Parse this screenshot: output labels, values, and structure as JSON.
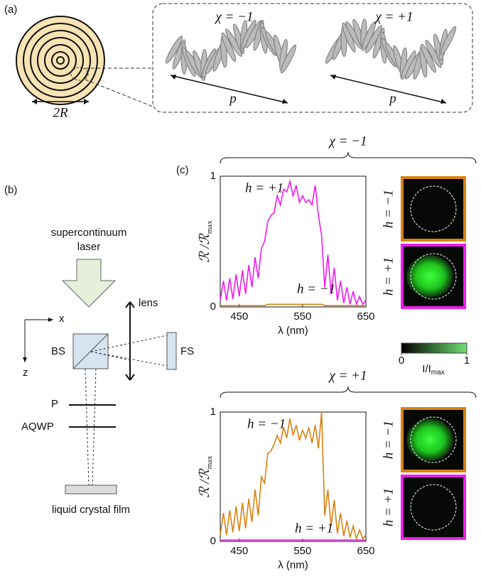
{
  "panel_labels": [
    "(a)",
    "(b)",
    "(c)"
  ],
  "panel_a": {
    "radius_label": "2R",
    "helices": [
      {
        "label": "χ = −1",
        "color": "#1f3fd6",
        "pitch_label": "p"
      },
      {
        "label": "χ = +1",
        "color": "#e0161b",
        "pitch_label": "p"
      }
    ]
  },
  "panel_b": {
    "source": [
      "supercontinuum",
      "laser"
    ],
    "lens": "lens",
    "axis_x": "x",
    "axis_z": "z",
    "beam_splitter": "BS",
    "screen": "FS",
    "polarizer": "P",
    "waveplate": "AQWP",
    "film": "liquid crystal film"
  },
  "colorbar": {
    "ticks": [
      0,
      1
    ],
    "label": "I/I",
    "label_subscript": "max"
  },
  "chart_data": [
    {
      "type": "line",
      "title": "χ = −1",
      "title_color": "#1f3fd6",
      "xlabel": "λ (nm)",
      "ylabel": "ℛ /ℛ",
      "ylabel_subscript": "max",
      "xlim": [
        420,
        650
      ],
      "xticks": [
        450,
        550,
        650
      ],
      "ylim": [
        0,
        1
      ],
      "yticks": [
        0,
        1
      ],
      "x": [
        420,
        425,
        430,
        435,
        440,
        445,
        450,
        455,
        460,
        465,
        470,
        475,
        480,
        485,
        490,
        495,
        500,
        505,
        510,
        515,
        520,
        525,
        530,
        535,
        540,
        545,
        550,
        555,
        560,
        565,
        570,
        575,
        580,
        585,
        590,
        595,
        600,
        605,
        610,
        615,
        620,
        625,
        630,
        635,
        640,
        645,
        650
      ],
      "series": [
        {
          "name": "h = +1",
          "color": "#ee1cee",
          "values": [
            0.05,
            0.2,
            0.05,
            0.22,
            0.06,
            0.25,
            0.08,
            0.28,
            0.1,
            0.32,
            0.15,
            0.38,
            0.22,
            0.45,
            0.5,
            0.65,
            0.7,
            0.72,
            0.85,
            0.78,
            0.9,
            0.88,
            0.96,
            0.85,
            0.93,
            0.8,
            0.85,
            0.8,
            0.82,
            0.78,
            0.93,
            0.7,
            0.55,
            0.15,
            0.4,
            0.1,
            0.3,
            0.05,
            0.2,
            0.03,
            0.15,
            0.02,
            0.12,
            0.02,
            0.08,
            0.02,
            0.05
          ]
        },
        {
          "name": "h = −1",
          "color": "#d9820f",
          "values": [
            0.01,
            0.01,
            0.01,
            0.01,
            0.01,
            0.01,
            0.01,
            0.01,
            0.01,
            0.01,
            0.01,
            0.01,
            0.01,
            0.01,
            0.01,
            0.02,
            0.02,
            0.02,
            0.02,
            0.02,
            0.02,
            0.02,
            0.02,
            0.02,
            0.02,
            0.02,
            0.02,
            0.02,
            0.02,
            0.02,
            0.02,
            0.02,
            0.02,
            0.01,
            0.01,
            0.01,
            0.01,
            0.01,
            0.01,
            0.01,
            0.01,
            0.01,
            0.01,
            0.01,
            0.01,
            0.01,
            0.01
          ]
        }
      ],
      "images": [
        {
          "label": "h = −1",
          "frame_color": "#d9820f",
          "glow": false
        },
        {
          "label": "h = +1",
          "frame_color": "#ee1cee",
          "glow": true
        }
      ]
    },
    {
      "type": "line",
      "title": "χ = +1",
      "title_color": "#e0161b",
      "xlabel": "λ (nm)",
      "ylabel": "ℛ /ℛ",
      "ylabel_subscript": "max",
      "xlim": [
        420,
        650
      ],
      "xticks": [
        450,
        550,
        650
      ],
      "ylim": [
        0,
        1
      ],
      "yticks": [
        0,
        1
      ],
      "x": [
        420,
        425,
        430,
        435,
        440,
        445,
        450,
        455,
        460,
        465,
        470,
        475,
        480,
        485,
        490,
        495,
        500,
        505,
        510,
        515,
        520,
        525,
        530,
        535,
        540,
        545,
        550,
        555,
        560,
        565,
        570,
        575,
        580,
        585,
        590,
        595,
        600,
        605,
        610,
        615,
        620,
        625,
        630,
        635,
        640,
        645,
        650
      ],
      "series": [
        {
          "name": "h = −1",
          "color": "#d9820f",
          "values": [
            0.05,
            0.22,
            0.05,
            0.24,
            0.07,
            0.27,
            0.08,
            0.3,
            0.1,
            0.33,
            0.15,
            0.4,
            0.2,
            0.5,
            0.45,
            0.68,
            0.7,
            0.75,
            0.82,
            0.76,
            0.88,
            0.8,
            0.95,
            0.82,
            0.9,
            0.78,
            0.86,
            0.8,
            0.88,
            0.76,
            0.9,
            0.72,
            1,
            0.2,
            0.4,
            0.12,
            0.32,
            0.06,
            0.22,
            0.04,
            0.16,
            0.03,
            0.12,
            0.02,
            0.09,
            0.02,
            0.05
          ]
        },
        {
          "name": "h = +1",
          "color": "#ee1cee",
          "values": [
            0.01,
            0.01,
            0.01,
            0.01,
            0.01,
            0.01,
            0.01,
            0.01,
            0.01,
            0.01,
            0.01,
            0.01,
            0.01,
            0.01,
            0.01,
            0.01,
            0.01,
            0.01,
            0.01,
            0.01,
            0.01,
            0.01,
            0.01,
            0.01,
            0.01,
            0.01,
            0.01,
            0.01,
            0.01,
            0.01,
            0.01,
            0.01,
            0.01,
            0.01,
            0.01,
            0.01,
            0.01,
            0.01,
            0.01,
            0.01,
            0.01,
            0.01,
            0.01,
            0.01,
            0.01,
            0.01,
            0.01
          ]
        }
      ],
      "images": [
        {
          "label": "h = −1",
          "frame_color": "#d9820f",
          "glow": true
        },
        {
          "label": "h = +1",
          "frame_color": "#ee1cee",
          "glow": false
        }
      ]
    }
  ]
}
